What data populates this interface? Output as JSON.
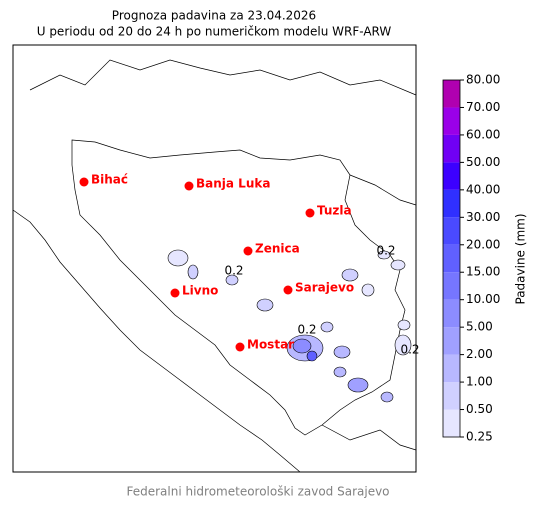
{
  "title": [
    "Prognoza padavina za 23.04.2026",
    "U periodu od 20 do 24 h po numeričkom modelu WRF-ARW"
  ],
  "map": {
    "cities": [
      "Bihać",
      "Banja Luka",
      "Tuzla",
      "Zenica",
      "Livno",
      "Sarajevo",
      "Mostar"
    ],
    "contour_labels": [
      "0.2",
      "0.2",
      "0.2",
      "0.2"
    ]
  },
  "colorbar": {
    "label": "Padavine (mm)",
    "ticks": [
      {
        "value": 0.25,
        "label": "0.25"
      },
      {
        "value": 0.5,
        "label": "0.50"
      },
      {
        "value": 1,
        "label": "1.00"
      },
      {
        "value": 2,
        "label": "2.00"
      },
      {
        "value": 5,
        "label": "5.00"
      },
      {
        "value": 10,
        "label": "10.00"
      },
      {
        "value": 15,
        "label": "15.00"
      },
      {
        "value": 20,
        "label": "20.00"
      },
      {
        "value": 30,
        "label": "30.00"
      },
      {
        "value": 40,
        "label": "40.00"
      },
      {
        "value": 50,
        "label": "50.00"
      },
      {
        "value": 60,
        "label": "60.00"
      },
      {
        "value": 70,
        "label": "70.00"
      },
      {
        "value": 80,
        "label": "80.00"
      }
    ],
    "colors": [
      "#e6e6ff",
      "#d0d0ff",
      "#b8b8ff",
      "#a0a0ff",
      "#8c8cff",
      "#7676ff",
      "#6060ff",
      "#4a4aff",
      "#3030ff",
      "#3c00ff",
      "#7000f5",
      "#9a00e8",
      "#b000b0"
    ]
  },
  "footer": "Federalni hidrometeorološki zavod Sarajevo"
}
